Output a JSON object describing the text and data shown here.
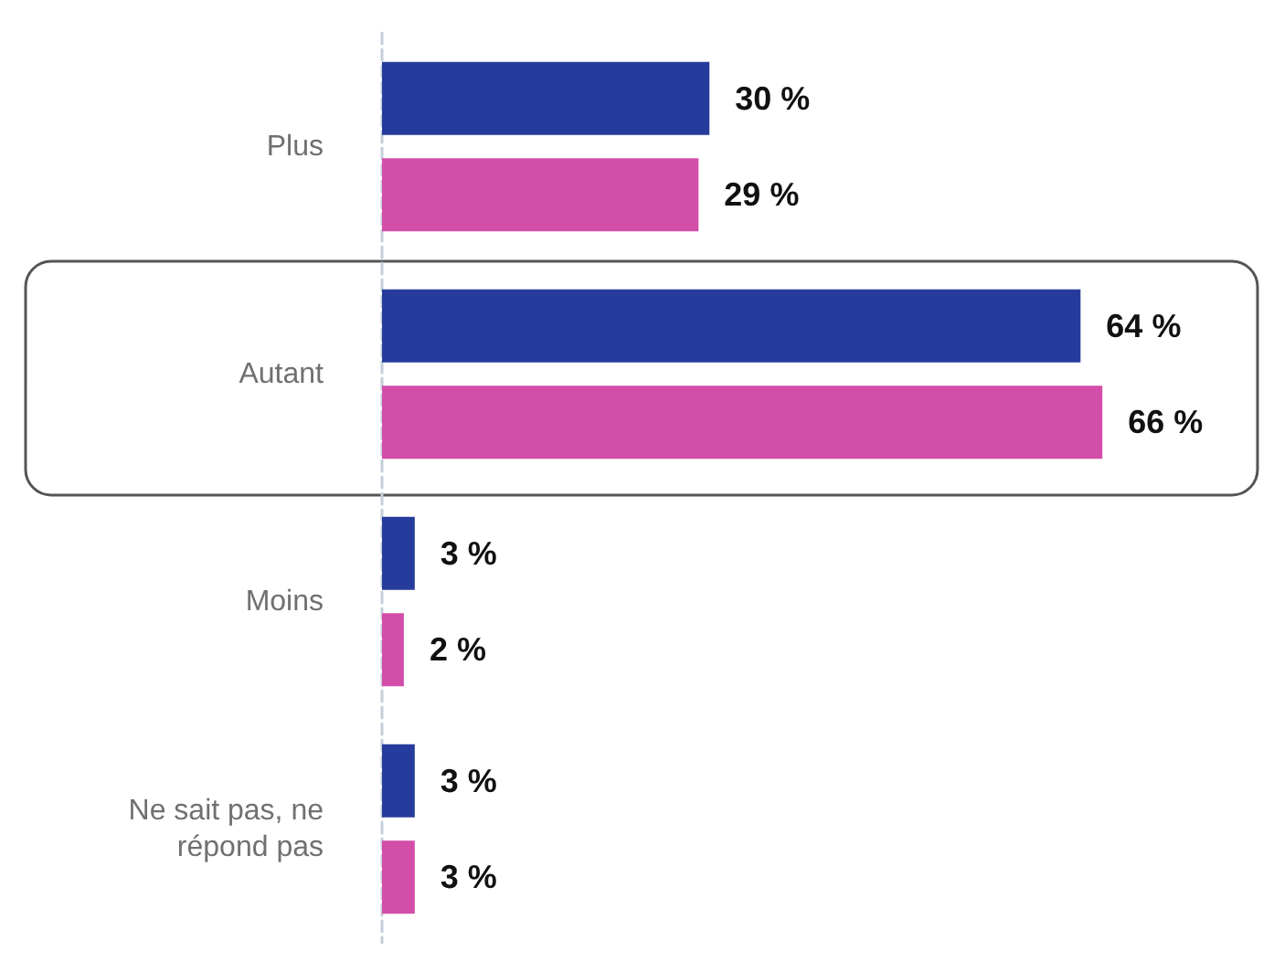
{
  "chart_data": {
    "type": "bar",
    "orientation": "horizontal",
    "categories": [
      "Plus",
      "Autant",
      "Moins",
      "Ne sait pas, ne répond pas"
    ],
    "series": [
      {
        "color": "#263c9c",
        "values": [
          30,
          64,
          3,
          3
        ],
        "value_labels": [
          "30 %",
          "64 %",
          "3 %",
          "3 %"
        ]
      },
      {
        "color": "#d24ea8",
        "values": [
          29,
          66,
          2,
          3
        ],
        "value_labels": [
          "29 %",
          "66 %",
          "2 %",
          "3 %"
        ]
      }
    ],
    "tick_labels": "y"
  }
}
